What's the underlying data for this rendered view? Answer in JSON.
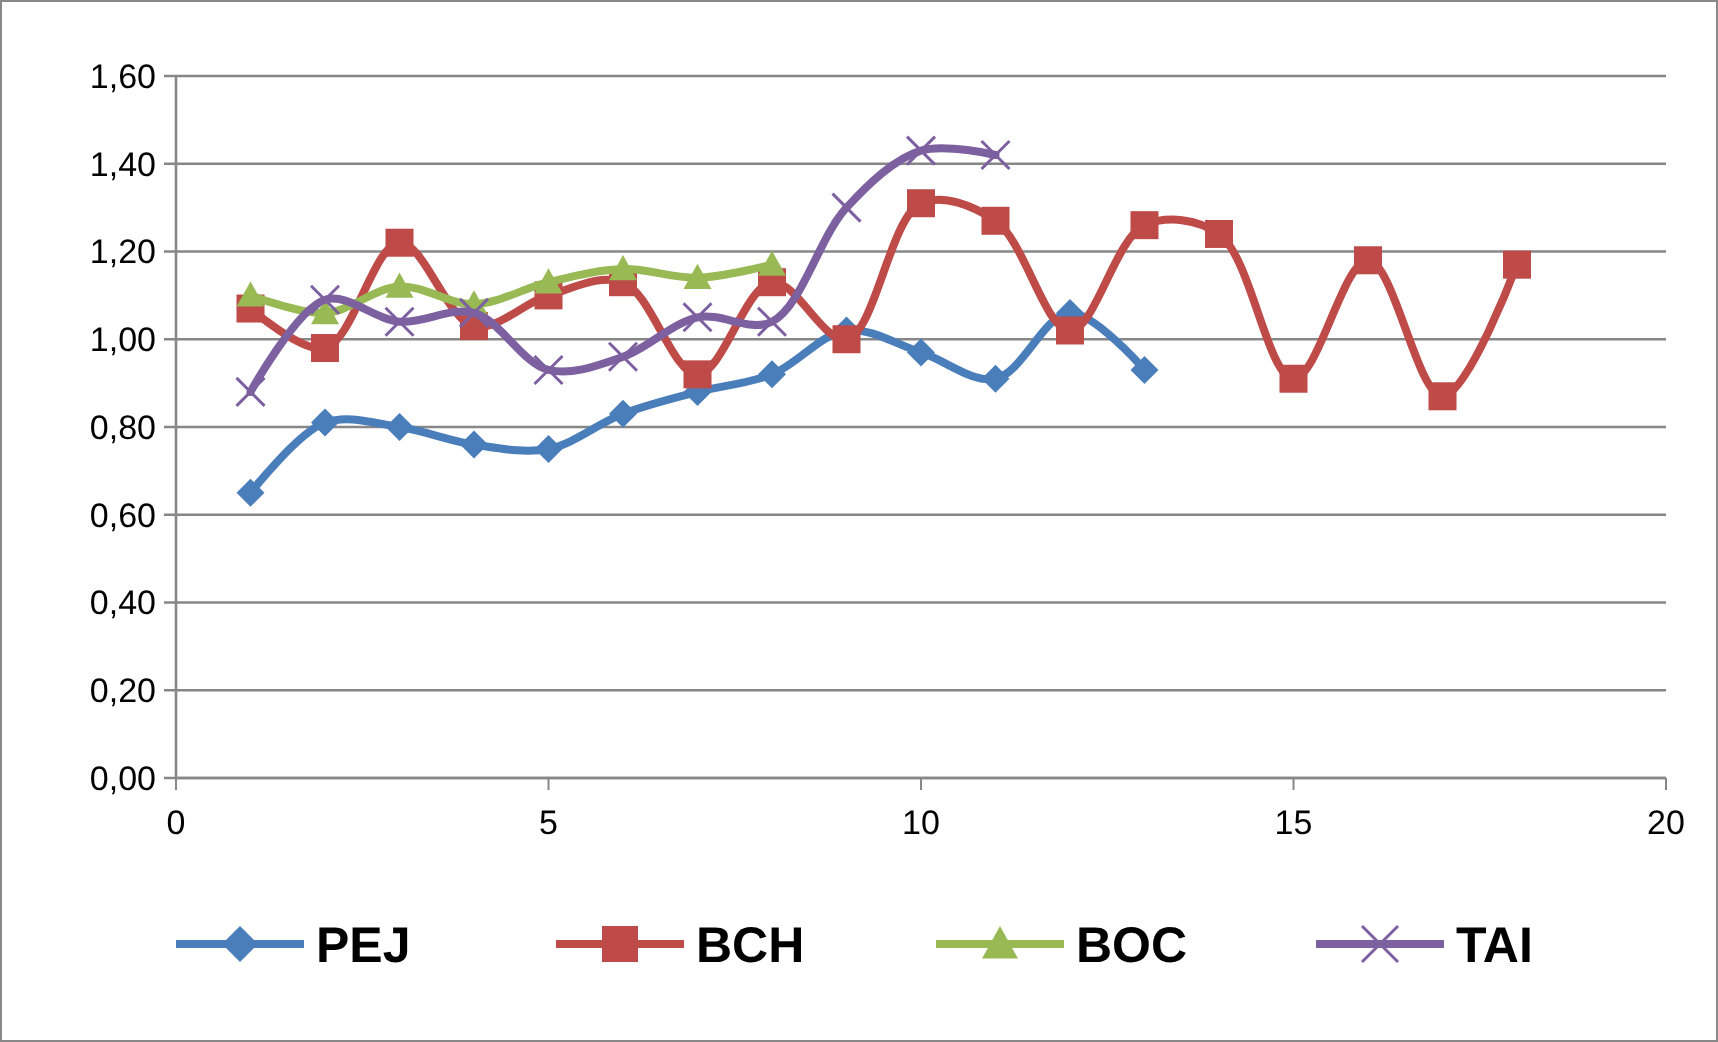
{
  "chart_data": {
    "type": "line",
    "xlim": [
      0,
      20
    ],
    "xticks": [
      0,
      5,
      10,
      15,
      20
    ],
    "ylim": [
      0,
      1.6
    ],
    "yticks": [
      {
        "value": 0,
        "label": "0,00"
      },
      {
        "value": 0.2,
        "label": "0,20"
      },
      {
        "value": 0.4,
        "label": "0,40"
      },
      {
        "value": 0.6,
        "label": "0,60"
      },
      {
        "value": 0.8,
        "label": "0,80"
      },
      {
        "value": 1.0,
        "label": "1,00"
      },
      {
        "value": 1.2,
        "label": "1,20"
      },
      {
        "value": 1.4,
        "label": "1,40"
      },
      {
        "value": 1.6,
        "label": "1,60"
      }
    ],
    "grid": "y",
    "legend": "bottom",
    "series": [
      {
        "name": "PEJ",
        "color": "#4a7ebb",
        "marker": "diamond",
        "x": [
          1,
          2,
          3,
          4,
          5,
          6,
          7,
          8,
          9,
          10,
          11,
          12,
          13
        ],
        "values": [
          0.65,
          0.81,
          0.8,
          0.76,
          0.75,
          0.83,
          0.88,
          0.92,
          1.02,
          0.97,
          0.91,
          1.06,
          0.93
        ]
      },
      {
        "name": "BCH",
        "color": "#be4b48",
        "marker": "square",
        "x": [
          1,
          2,
          3,
          4,
          5,
          6,
          7,
          8,
          9,
          10,
          11,
          12,
          13,
          14,
          15,
          16,
          17,
          18
        ],
        "values": [
          1.07,
          0.98,
          1.22,
          1.03,
          1.1,
          1.13,
          0.92,
          1.13,
          1.0,
          1.31,
          1.27,
          1.02,
          1.26,
          1.24,
          0.91,
          1.18,
          0.87,
          1.17
        ]
      },
      {
        "name": "BOC",
        "color": "#98b954",
        "marker": "triangle",
        "x": [
          1,
          2,
          3,
          4,
          5,
          6,
          7,
          8
        ],
        "values": [
          1.1,
          1.06,
          1.12,
          1.08,
          1.13,
          1.16,
          1.14,
          1.17
        ]
      },
      {
        "name": "TAI",
        "color": "#7d60a0",
        "marker": "cross",
        "x": [
          1,
          2,
          3,
          4,
          5,
          6,
          7,
          8,
          9,
          10,
          11
        ],
        "values": [
          0.88,
          1.09,
          1.04,
          1.06,
          0.93,
          0.96,
          1.05,
          1.04,
          1.3,
          1.43,
          1.42
        ]
      }
    ]
  }
}
